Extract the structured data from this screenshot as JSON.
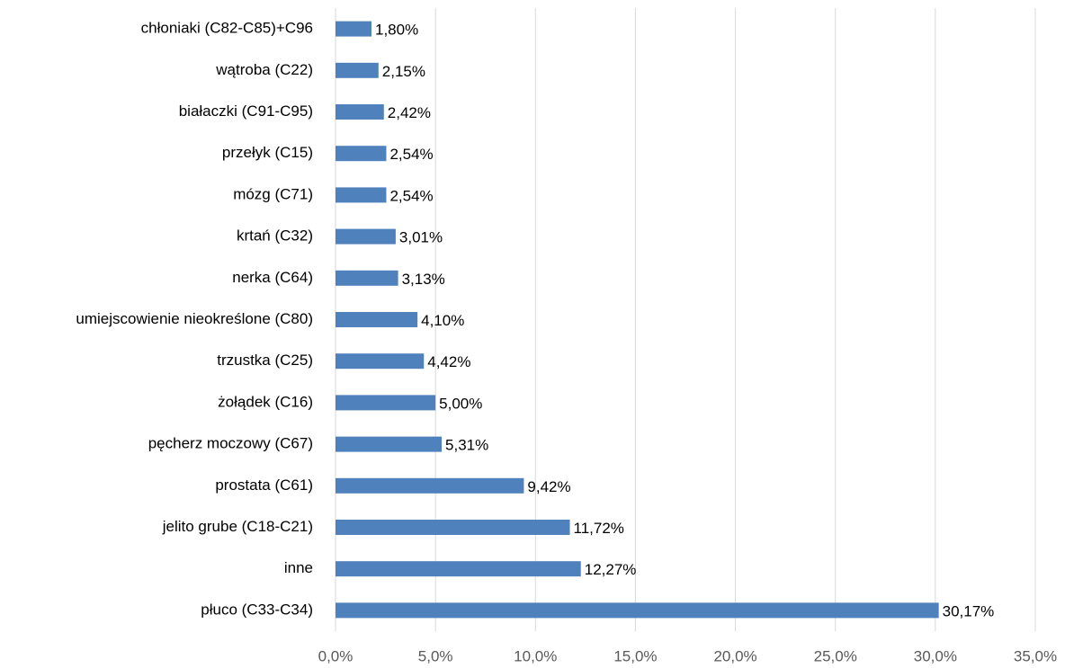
{
  "chart_data": {
    "type": "barh",
    "categories": [
      "chłoniaki (C82-C85)+C96",
      "wątroba (C22)",
      "białaczki (C91-C95)",
      "przełyk (C15)",
      "mózg (C71)",
      "krtań (C32)",
      "nerka (C64)",
      "umiejscowienie nieokreślone (C80)",
      "trzustka (C25)",
      "żołądek (C16)",
      "pęcherz moczowy (C67)",
      "prostata (C61)",
      "jelito grube (C18-C21)",
      "inne",
      "płuco (C33-C34)"
    ],
    "values": [
      1.8,
      2.15,
      2.42,
      2.54,
      2.54,
      3.01,
      3.13,
      4.1,
      4.42,
      5.0,
      5.31,
      9.42,
      11.72,
      12.27,
      30.17
    ],
    "value_labels": [
      "1,80%",
      "2,15%",
      "2,42%",
      "2,54%",
      "2,54%",
      "3,01%",
      "3,13%",
      "4,10%",
      "4,42%",
      "5,00%",
      "5,31%",
      "9,42%",
      "11,72%",
      "12,27%",
      "30,17%"
    ],
    "color": "#4f81bd",
    "xlim": [
      0,
      35
    ],
    "xticks": [
      {
        "value": 0,
        "label": "0,0%"
      },
      {
        "value": 5,
        "label": "5,0%"
      },
      {
        "value": 10,
        "label": "10,0%"
      },
      {
        "value": 15,
        "label": "15,0%"
      },
      {
        "value": 20,
        "label": "20,0%"
      },
      {
        "value": 25,
        "label": "25,0%"
      },
      {
        "value": 30,
        "label": "30,0%"
      },
      {
        "value": 35,
        "label": "35,0%"
      }
    ],
    "grid": true
  }
}
